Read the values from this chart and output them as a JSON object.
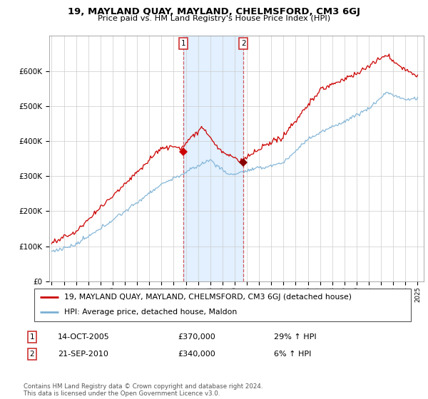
{
  "title": "19, MAYLAND QUAY, MAYLAND, CHELMSFORD, CM3 6GJ",
  "subtitle": "Price paid vs. HM Land Registry's House Price Index (HPI)",
  "legend_line1": "19, MAYLAND QUAY, MAYLAND, CHELMSFORD, CM3 6GJ (detached house)",
  "legend_line2": "HPI: Average price, detached house, Maldon",
  "sale1_date": "14-OCT-2005",
  "sale1_price": "£370,000",
  "sale1_hpi": "29% ↑ HPI",
  "sale2_date": "21-SEP-2010",
  "sale2_price": "£340,000",
  "sale2_hpi": "6% ↑ HPI",
  "footnote": "Contains HM Land Registry data © Crown copyright and database right 2024.\nThis data is licensed under the Open Government Licence v3.0.",
  "red_color": "#cc0000",
  "blue_color": "#7ab0d4",
  "shaded_region_color": "#ddeeff",
  "ylim": [
    0,
    700000
  ],
  "yticks": [
    0,
    100000,
    200000,
    300000,
    400000,
    500000,
    600000
  ],
  "ytick_labels": [
    "£0",
    "£100K",
    "£200K",
    "£300K",
    "£400K",
    "£500K",
    "£600K"
  ],
  "sale1_x": 2005.79,
  "sale2_x": 2010.72,
  "sale1_y": 370000,
  "sale2_y": 340000,
  "shaded_x_start": 2005.79,
  "shaded_x_end": 2010.72,
  "xlim_start": 1994.8,
  "xlim_end": 2025.5
}
